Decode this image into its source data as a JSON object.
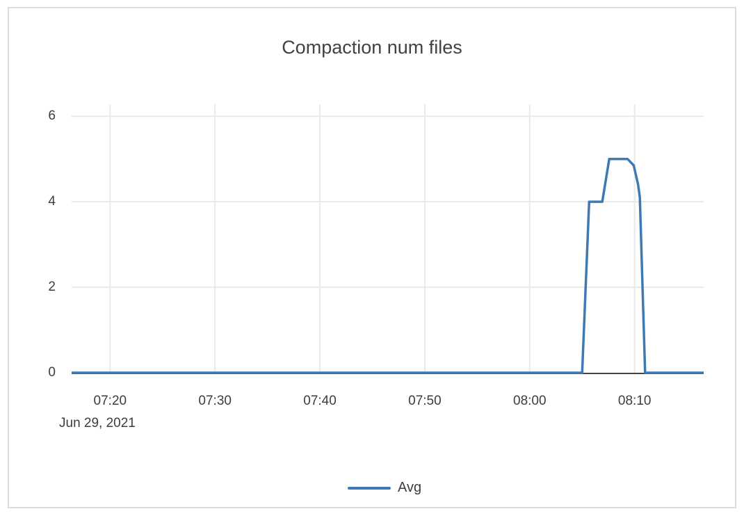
{
  "chart_data": {
    "type": "line",
    "title": "Compaction num files",
    "x_axis_date_label": "Jun 29, 2021",
    "xlabel": "",
    "ylabel": "",
    "xticks": [
      "07:20",
      "07:30",
      "07:40",
      "07:50",
      "08:00",
      "08:10"
    ],
    "yticks": [
      "0",
      "2",
      "4",
      "6"
    ],
    "xlim": [
      "07:16:20",
      "08:16:35"
    ],
    "ylim": [
      0,
      6.28
    ],
    "grid": true,
    "legend_position": "bottom-center",
    "colors": {
      "line": "#3E79B4",
      "gridline": "#e9e9e9",
      "zero_axis": "#444444",
      "text": "#3d3d3d",
      "border": "#dddddd"
    },
    "series": [
      {
        "name": "Avg",
        "points": [
          [
            "07:16:20",
            0
          ],
          [
            "08:05:00",
            0
          ],
          [
            "08:05:40",
            4
          ],
          [
            "08:06:55",
            4
          ],
          [
            "08:07:35",
            5
          ],
          [
            "08:09:20",
            5
          ],
          [
            "08:09:55",
            4.85
          ],
          [
            "08:10:20",
            4.4
          ],
          [
            "08:10:30",
            4.1
          ],
          [
            "08:11:00",
            0
          ],
          [
            "08:16:35",
            0
          ]
        ]
      }
    ]
  }
}
